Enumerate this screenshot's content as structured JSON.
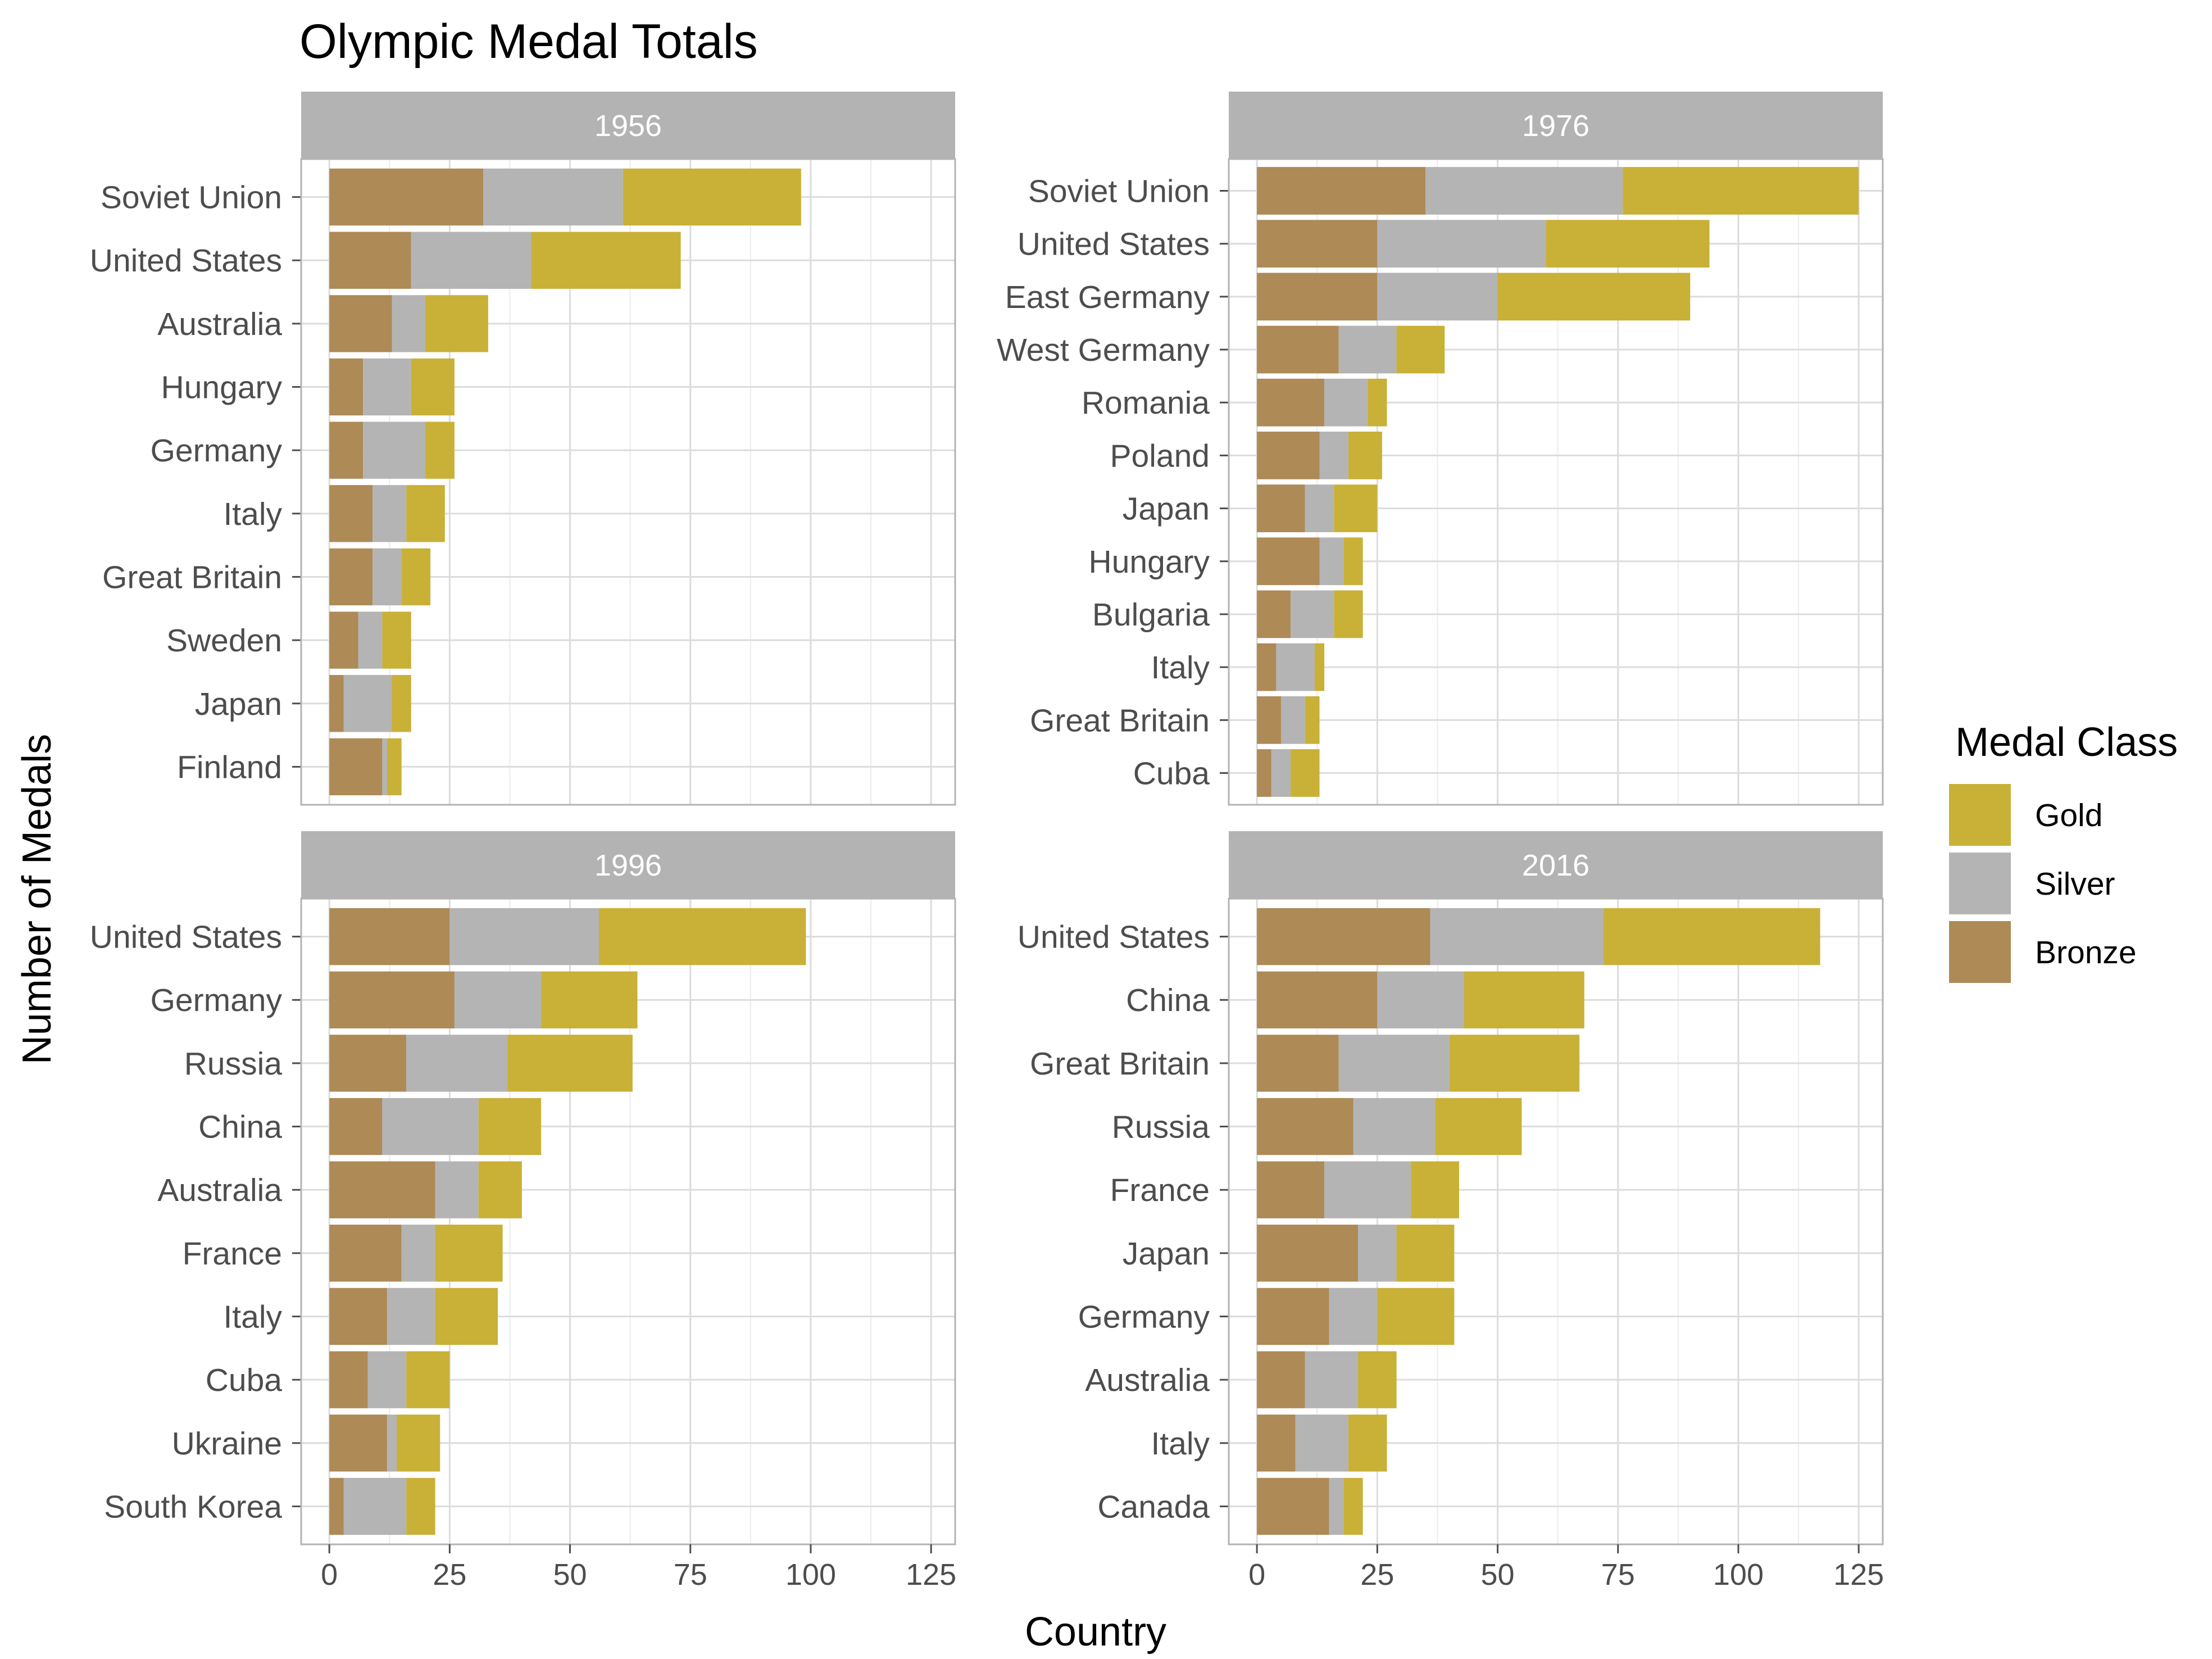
{
  "chart_data": {
    "type": "bar",
    "orientation": "horizontal",
    "stacked": true,
    "title": "Olympic Medal Totals",
    "xlabel": "Country",
    "ylabel": "Number of Medals",
    "xlim": [
      0,
      130
    ],
    "xticks": [
      0,
      25,
      50,
      75,
      100,
      125
    ],
    "grid": true,
    "legend": {
      "title": "Medal Class",
      "position": "right",
      "entries": [
        "Gold",
        "Silver",
        "Bronze"
      ]
    },
    "colors": {
      "Gold": "#c9b037",
      "Silver": "#b4b4b4",
      "Bronze": "#ad8a56"
    },
    "panels": [
      {
        "label": "1956",
        "categories": [
          "Soviet Union",
          "United States",
          "Australia",
          "Hungary",
          "Germany",
          "Italy",
          "Great Britain",
          "Sweden",
          "Japan",
          "Finland"
        ],
        "bronze": [
          32,
          17,
          13,
          7,
          7,
          9,
          9,
          6,
          3,
          11
        ],
        "silver": [
          29,
          25,
          7,
          10,
          13,
          7,
          6,
          5,
          10,
          1
        ],
        "gold": [
          37,
          31,
          13,
          9,
          6,
          8,
          6,
          6,
          4,
          3
        ]
      },
      {
        "label": "1976",
        "categories": [
          "Soviet Union",
          "United States",
          "East Germany",
          "West Germany",
          "Romania",
          "Poland",
          "Japan",
          "Hungary",
          "Bulgaria",
          "Italy",
          "Great Britain",
          "Cuba"
        ],
        "bronze": [
          35,
          25,
          25,
          17,
          14,
          13,
          10,
          13,
          7,
          4,
          5,
          3
        ],
        "silver": [
          41,
          35,
          25,
          12,
          9,
          6,
          6,
          5,
          9,
          8,
          5,
          4
        ],
        "gold": [
          49,
          34,
          40,
          10,
          4,
          7,
          9,
          4,
          6,
          2,
          3,
          6
        ]
      },
      {
        "label": "1996",
        "categories": [
          "United States",
          "Germany",
          "Russia",
          "China",
          "Australia",
          "France",
          "Italy",
          "Cuba",
          "Ukraine",
          "South Korea"
        ],
        "bronze": [
          25,
          26,
          16,
          11,
          22,
          15,
          12,
          8,
          12,
          3
        ],
        "silver": [
          31,
          18,
          21,
          20,
          9,
          7,
          10,
          8,
          2,
          13
        ],
        "gold": [
          43,
          20,
          26,
          13,
          9,
          14,
          13,
          9,
          9,
          6
        ]
      },
      {
        "label": "2016",
        "categories": [
          "United States",
          "China",
          "Great Britain",
          "Russia",
          "France",
          "Japan",
          "Germany",
          "Australia",
          "Italy",
          "Canada"
        ],
        "bronze": [
          36,
          25,
          17,
          20,
          14,
          21,
          15,
          10,
          8,
          15
        ],
        "silver": [
          36,
          18,
          23,
          17,
          18,
          8,
          10,
          11,
          11,
          3
        ],
        "gold": [
          45,
          25,
          27,
          18,
          10,
          12,
          16,
          8,
          8,
          4
        ]
      }
    ]
  }
}
